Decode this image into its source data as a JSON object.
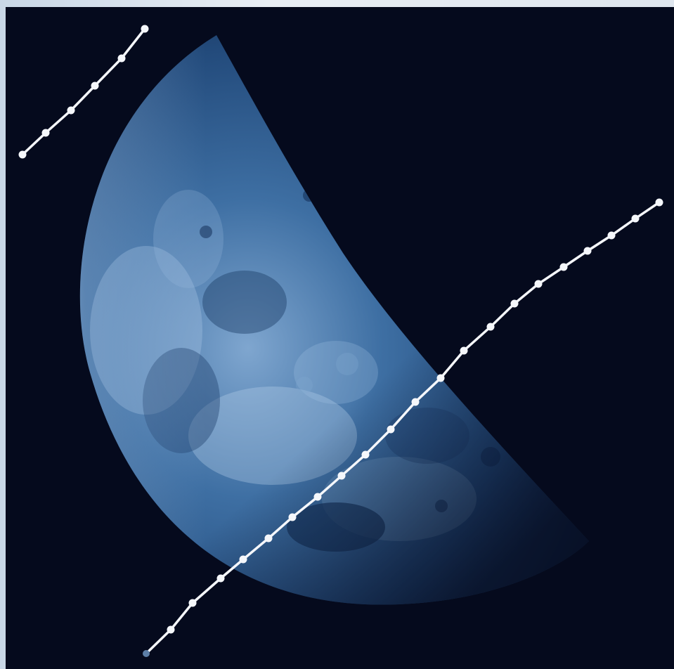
{
  "scene": {
    "subject": "moon",
    "phase_shape": "waning-half",
    "colors": {
      "sky": "#050a1d",
      "moon_bright": "#bcd4ee",
      "moon_mid": "#2e5f93",
      "moon_dark": "#0f2445",
      "trail": "#f5f7fb",
      "frame": "#e4eaf1"
    }
  },
  "trails": [
    {
      "name": "short-trail",
      "points": 6
    },
    {
      "name": "long-trail",
      "points": 23
    }
  ]
}
